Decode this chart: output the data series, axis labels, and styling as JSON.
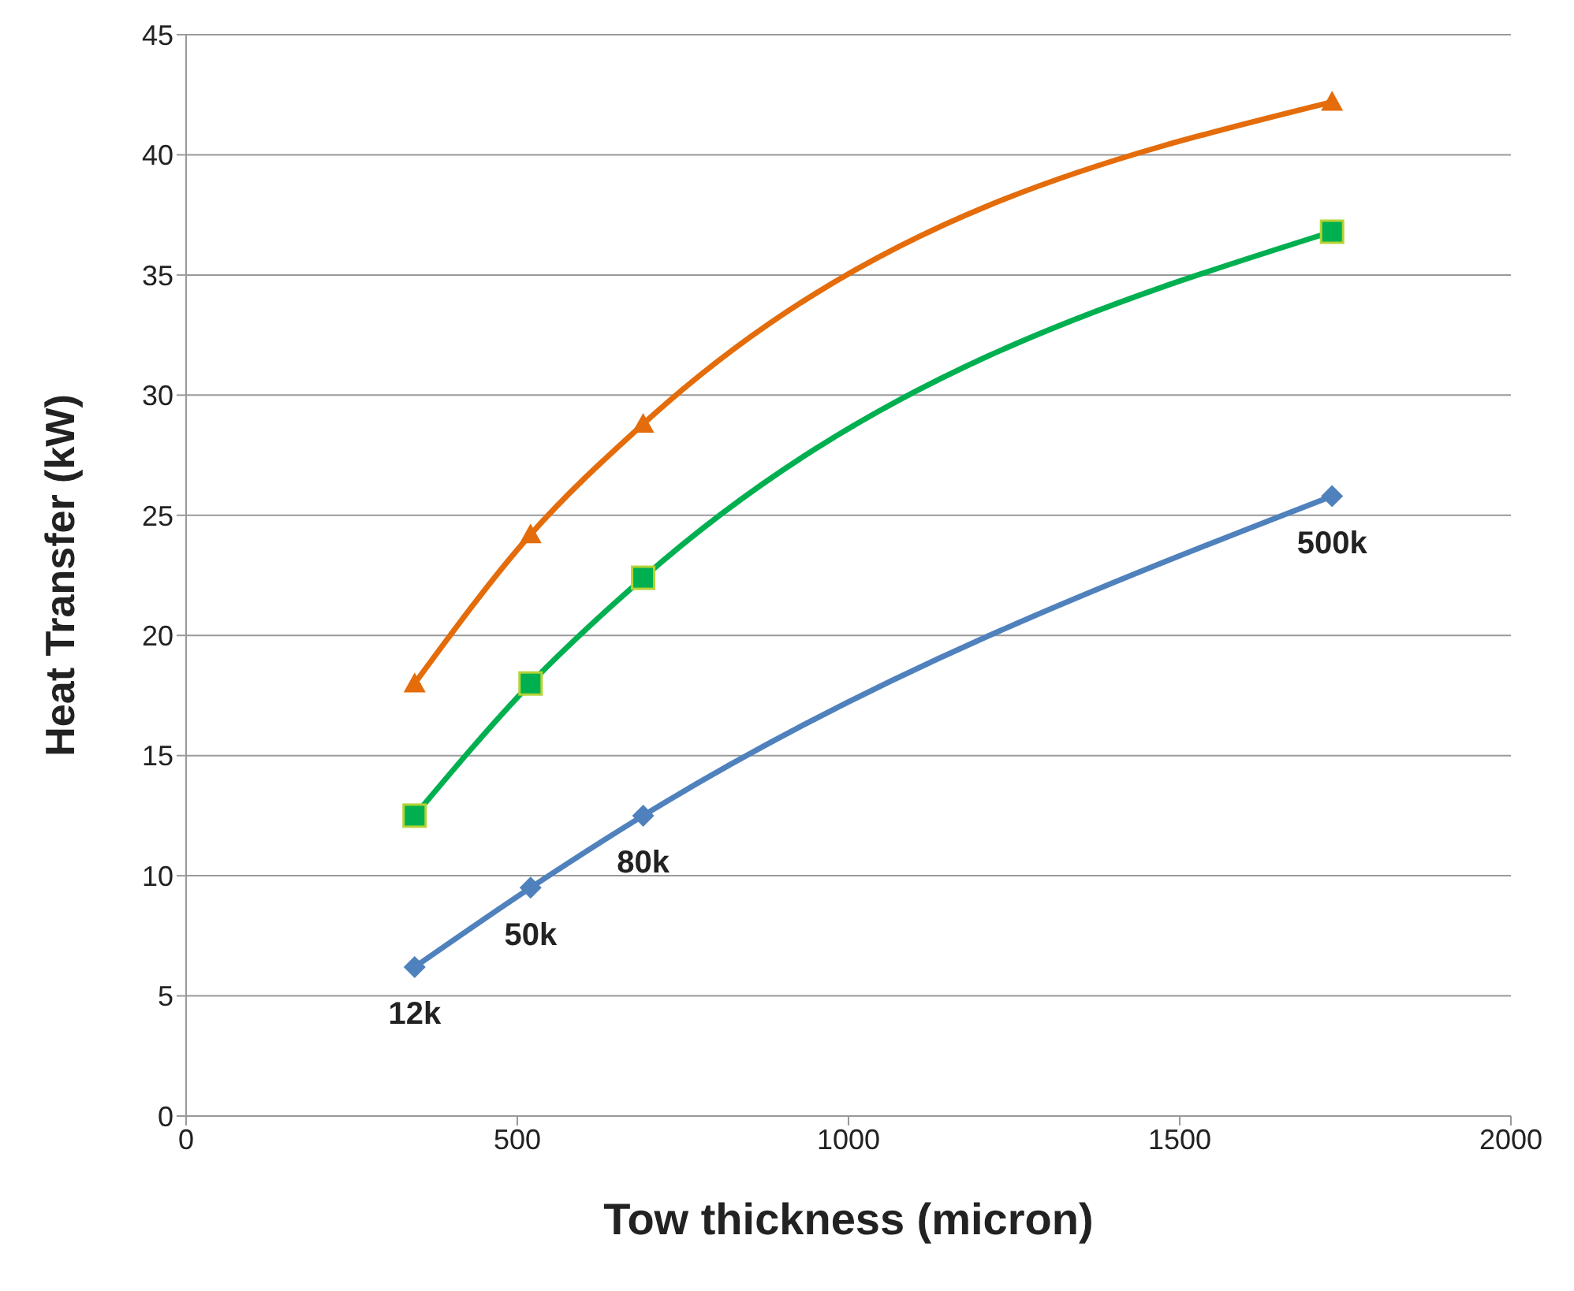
{
  "chart_data": {
    "type": "line",
    "xlabel": "Tow thickness (micron)",
    "ylabel": "Heat Transfer (kW)",
    "xlim": [
      0,
      2000
    ],
    "xticks": [
      0,
      500,
      1000,
      1500,
      2000
    ],
    "ylim": [
      0,
      45
    ],
    "yticks": [
      0,
      5,
      10,
      15,
      20,
      25,
      30,
      35,
      40,
      45
    ],
    "grid": "y",
    "series": [
      {
        "color": "#e46c0a",
        "marker": "triangle",
        "x": [
          345,
          520,
          690,
          1730
        ],
        "values": [
          18.0,
          24.2,
          28.8,
          42.2
        ]
      },
      {
        "color": "#00b050",
        "marker": "square",
        "x": [
          345,
          520,
          690,
          1730
        ],
        "values": [
          12.5,
          18.0,
          22.4,
          36.8
        ]
      },
      {
        "color": "#4f81bd",
        "marker": "diamond",
        "x": [
          345,
          520,
          690,
          1730
        ],
        "values": [
          6.2,
          9.5,
          12.5,
          25.8
        ]
      }
    ],
    "annotations": [
      {
        "text": "12k",
        "x": 345,
        "y": 6.2
      },
      {
        "text": "50k",
        "x": 520,
        "y": 9.5
      },
      {
        "text": "80k",
        "x": 690,
        "y": 12.5
      },
      {
        "text": "500k",
        "x": 1730,
        "y": 25.8
      }
    ]
  }
}
